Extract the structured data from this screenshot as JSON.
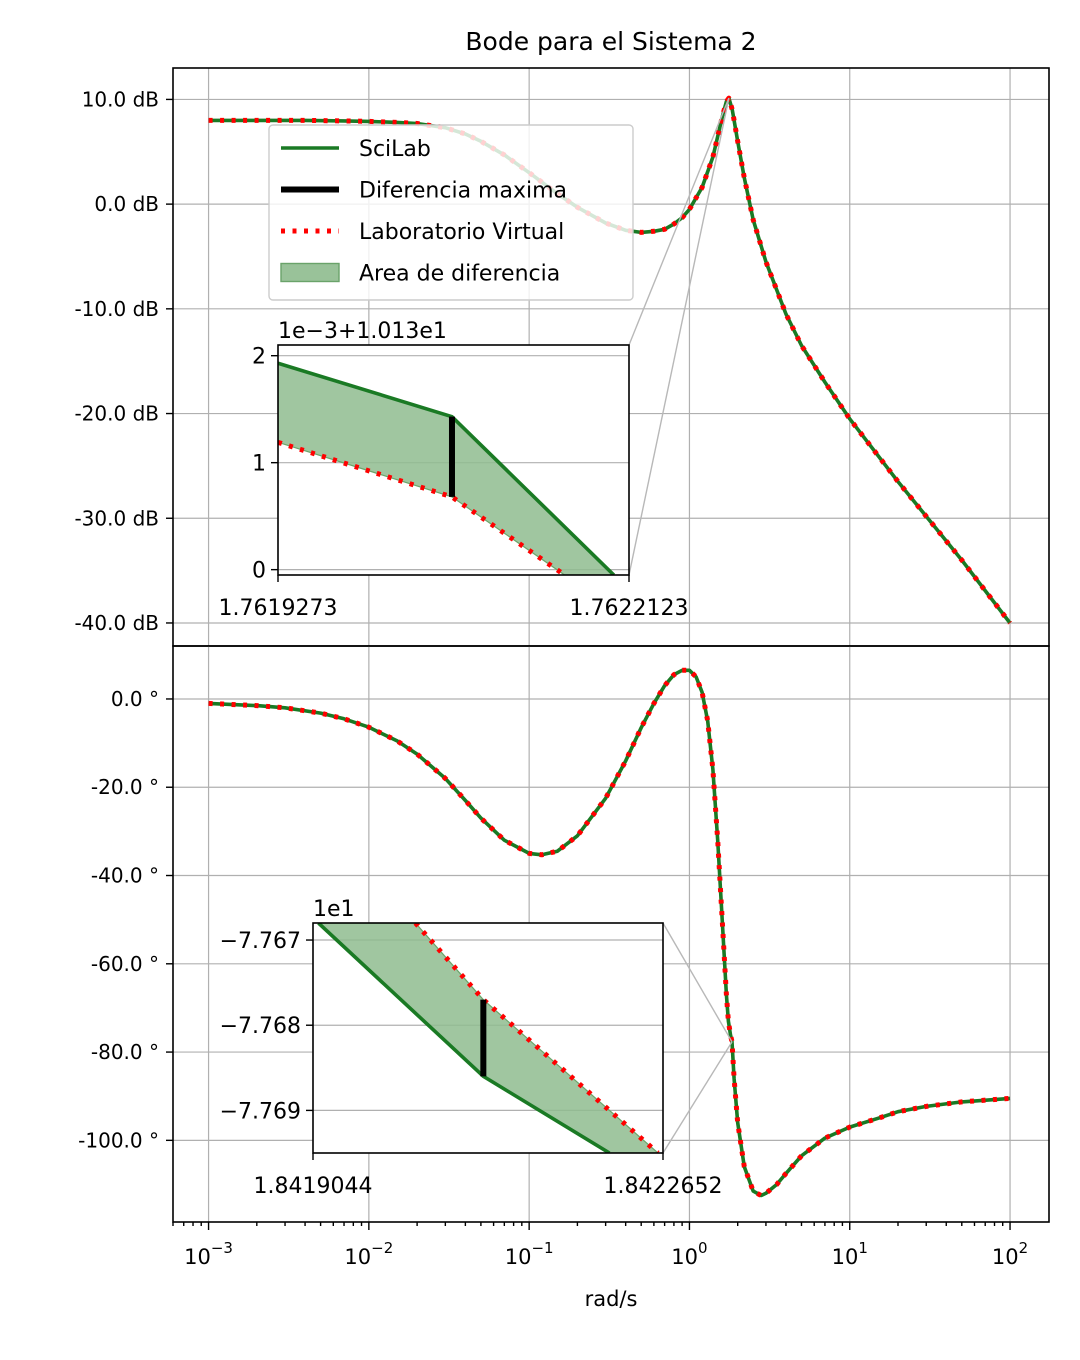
{
  "title": "Bode para el Sistema 2",
  "xlabel": "rad/s",
  "colors": {
    "scilab": "#1a7a24",
    "virtual": "#ff0000",
    "diff": "#000000",
    "area": "#8fbc8f",
    "grid": "#b0b0b0"
  },
  "legend": {
    "placement": "upper-left of magnitude panel",
    "items": [
      {
        "label": "SciLab",
        "kind": "line"
      },
      {
        "label": "Diferencia maxima",
        "kind": "thick"
      },
      {
        "label": "Laboratorio Virtual",
        "kind": "dotted"
      },
      {
        "label": "Area de diferencia",
        "kind": "patch"
      }
    ]
  },
  "x_ticks": [
    {
      "base": "10",
      "exp": "−3",
      "value": 0.001
    },
    {
      "base": "10",
      "exp": "−2",
      "value": 0.01
    },
    {
      "base": "10",
      "exp": "−1",
      "value": 0.1
    },
    {
      "base": "10",
      "exp": "0",
      "value": 1
    },
    {
      "base": "10",
      "exp": "1",
      "value": 10
    },
    {
      "base": "10",
      "exp": "2",
      "value": 100
    }
  ],
  "chart_data": [
    {
      "type": "line",
      "name": "magnitude",
      "xscale": "log",
      "xlim": [
        0.0006,
        175
      ],
      "ylim": [
        -42.2,
        13.0
      ],
      "yticks": [
        {
          "label": "10.0 dB",
          "value": 10
        },
        {
          "label": "0.0 dB",
          "value": 0
        },
        {
          "label": "-10.0 dB",
          "value": -10
        },
        {
          "label": "-20.0 dB",
          "value": -20
        },
        {
          "label": "-30.0 dB",
          "value": -30
        },
        {
          "label": "-40.0 dB",
          "value": -40
        }
      ],
      "grid": true,
      "series": [
        {
          "name": "SciLab",
          "x": [
            0.001,
            0.002,
            0.004,
            0.007,
            0.01,
            0.015,
            0.02,
            0.03,
            0.04,
            0.05,
            0.07,
            0.1,
            0.15,
            0.2,
            0.3,
            0.4,
            0.5,
            0.6,
            0.7,
            0.8,
            0.9,
            1.0,
            1.2,
            1.4,
            1.6,
            1.7,
            1.762,
            1.85,
            2.0,
            2.2,
            2.5,
            3.0,
            4.0,
            5.0,
            7.0,
            10,
            20,
            50,
            100
          ],
          "y": [
            8.0,
            8.0,
            8.0,
            7.95,
            7.9,
            7.8,
            7.7,
            7.3,
            6.7,
            6.0,
            4.7,
            3.0,
            1.0,
            -0.3,
            -1.8,
            -2.5,
            -2.7,
            -2.6,
            -2.4,
            -1.9,
            -1.3,
            -0.5,
            1.6,
            4.5,
            8.3,
            9.8,
            10.13,
            9.0,
            6.0,
            2.5,
            -1.5,
            -5.5,
            -10.5,
            -13.5,
            -17.0,
            -20.5,
            -26.5,
            -34.0,
            -40.0
          ]
        },
        {
          "name": "Laboratorio Virtual",
          "x": [
            0.001,
            0.002,
            0.004,
            0.007,
            0.01,
            0.015,
            0.02,
            0.03,
            0.04,
            0.05,
            0.07,
            0.1,
            0.15,
            0.2,
            0.3,
            0.4,
            0.5,
            0.6,
            0.7,
            0.8,
            0.9,
            1.0,
            1.2,
            1.4,
            1.6,
            1.7,
            1.762,
            1.85,
            2.0,
            2.2,
            2.5,
            3.0,
            4.0,
            5.0,
            7.0,
            10,
            20,
            50,
            100
          ],
          "y": [
            8.0,
            8.0,
            8.0,
            7.95,
            7.9,
            7.8,
            7.7,
            7.3,
            6.7,
            6.0,
            4.7,
            3.0,
            1.0,
            -0.3,
            -1.8,
            -2.5,
            -2.7,
            -2.6,
            -2.4,
            -1.9,
            -1.3,
            -0.5,
            1.6,
            4.5,
            8.3,
            9.8,
            10.13,
            9.0,
            6.0,
            2.5,
            -1.5,
            -5.5,
            -10.5,
            -13.5,
            -17.0,
            -20.5,
            -26.5,
            -34.0,
            -40.0
          ]
        }
      ],
      "inset": {
        "offset_label": "1e−3+1.013e1",
        "xlim": [
          1.7619273,
          1.7622123
        ],
        "xtick_labels": [
          "1.7619273",
          "1.7622123"
        ],
        "ylim": [
          -0.05,
          2.1
        ],
        "yticks": [
          {
            "label": "0",
            "value": 0
          },
          {
            "label": "1",
            "value": 1
          },
          {
            "label": "2",
            "value": 2
          }
        ],
        "scilab": {
          "x": [
            1.7619273,
            1.76206857,
            1.7622
          ],
          "y": [
            1.93,
            1.43,
            -0.05
          ]
        },
        "virtual": {
          "x": [
            1.7619273,
            1.76206857,
            1.76216
          ],
          "y": [
            1.19,
            0.68,
            -0.05
          ]
        },
        "max_diff": {
          "x": 1.76206857,
          "y_low": 0.68,
          "y_high": 1.43
        }
      }
    },
    {
      "type": "line",
      "name": "phase",
      "xscale": "log",
      "xlim": [
        0.0006,
        175
      ],
      "ylim": [
        -118.5,
        12.0
      ],
      "yticks": [
        {
          "label": "0.0 °",
          "value": 0
        },
        {
          "label": "-20.0 °",
          "value": -20
        },
        {
          "label": "-40.0 °",
          "value": -40
        },
        {
          "label": "-60.0 °",
          "value": -60
        },
        {
          "label": "-80.0 °",
          "value": -80
        },
        {
          "label": "-100.0 °",
          "value": -100
        }
      ],
      "grid": true,
      "series": [
        {
          "name": "SciLab",
          "x": [
            0.001,
            0.002,
            0.003,
            0.005,
            0.007,
            0.01,
            0.015,
            0.02,
            0.03,
            0.04,
            0.05,
            0.07,
            0.1,
            0.12,
            0.15,
            0.2,
            0.3,
            0.4,
            0.5,
            0.6,
            0.7,
            0.8,
            0.9,
            1.0,
            1.1,
            1.2,
            1.3,
            1.4,
            1.5,
            1.6,
            1.7,
            1.75,
            1.8,
            1.842,
            1.9,
            2.0,
            2.2,
            2.5,
            2.8,
            3.0,
            3.5,
            4.0,
            5.0,
            7.0,
            10,
            15,
            20,
            30,
            50,
            100
          ],
          "y": [
            -1.0,
            -1.5,
            -2.0,
            -3.2,
            -4.5,
            -6.4,
            -9.5,
            -12.5,
            -18.0,
            -23.0,
            -27.0,
            -32.0,
            -35.0,
            -35.3,
            -34.5,
            -31.0,
            -22.5,
            -14.0,
            -6.5,
            -1.0,
            3.0,
            5.5,
            6.5,
            6.5,
            5.0,
            1.5,
            -5.0,
            -16.0,
            -32.0,
            -50.0,
            -67.0,
            -73.0,
            -76.0,
            -77.68,
            -86.0,
            -96.0,
            -106.0,
            -111.5,
            -112.5,
            -112.0,
            -110.0,
            -107.5,
            -103.5,
            -99.5,
            -97.0,
            -95.0,
            -93.5,
            -92.3,
            -91.3,
            -90.5
          ]
        },
        {
          "name": "Laboratorio Virtual",
          "x": [
            0.001,
            0.002,
            0.003,
            0.005,
            0.007,
            0.01,
            0.015,
            0.02,
            0.03,
            0.04,
            0.05,
            0.07,
            0.1,
            0.12,
            0.15,
            0.2,
            0.3,
            0.4,
            0.5,
            0.6,
            0.7,
            0.8,
            0.9,
            1.0,
            1.1,
            1.2,
            1.3,
            1.4,
            1.5,
            1.6,
            1.7,
            1.75,
            1.8,
            1.842,
            1.9,
            2.0,
            2.2,
            2.5,
            2.8,
            3.0,
            3.5,
            4.0,
            5.0,
            7.0,
            10,
            15,
            20,
            30,
            50,
            100
          ],
          "y": [
            -1.0,
            -1.5,
            -2.0,
            -3.2,
            -4.5,
            -6.4,
            -9.5,
            -12.5,
            -18.0,
            -23.0,
            -27.0,
            -32.0,
            -35.0,
            -35.3,
            -34.5,
            -31.0,
            -22.5,
            -14.0,
            -6.5,
            -1.0,
            3.0,
            5.5,
            6.5,
            6.5,
            5.0,
            1.5,
            -5.0,
            -16.0,
            -32.0,
            -50.0,
            -67.0,
            -73.0,
            -76.0,
            -77.68,
            -86.0,
            -96.0,
            -106.0,
            -111.5,
            -112.5,
            -112.0,
            -110.0,
            -107.5,
            -103.5,
            -99.5,
            -97.0,
            -95.0,
            -93.5,
            -92.3,
            -91.3,
            -90.5
          ]
        }
      ],
      "inset": {
        "offset_label": "1e1",
        "xlim": [
          1.8419044,
          1.8422652
        ],
        "xtick_labels": [
          "1.8419044",
          "1.8422652"
        ],
        "ylim": [
          -7.7695,
          -7.7668
        ],
        "yticks": [
          {
            "label": "−7.767",
            "value": -7.767
          },
          {
            "label": "−7.768",
            "value": -7.768
          },
          {
            "label": "−7.769",
            "value": -7.769
          }
        ],
        "scilab": {
          "x": [
            1.84191,
            1.84208,
            1.84221
          ],
          "y": [
            -7.7668,
            -7.7686,
            -7.7695
          ]
        },
        "virtual": {
          "x": [
            1.84201,
            1.84208,
            1.84226
          ],
          "y": [
            -7.7668,
            -7.7677,
            -7.7695
          ]
        },
        "max_diff": {
          "x": 1.84208,
          "y_low": -7.7686,
          "y_high": -7.7677
        }
      }
    }
  ]
}
